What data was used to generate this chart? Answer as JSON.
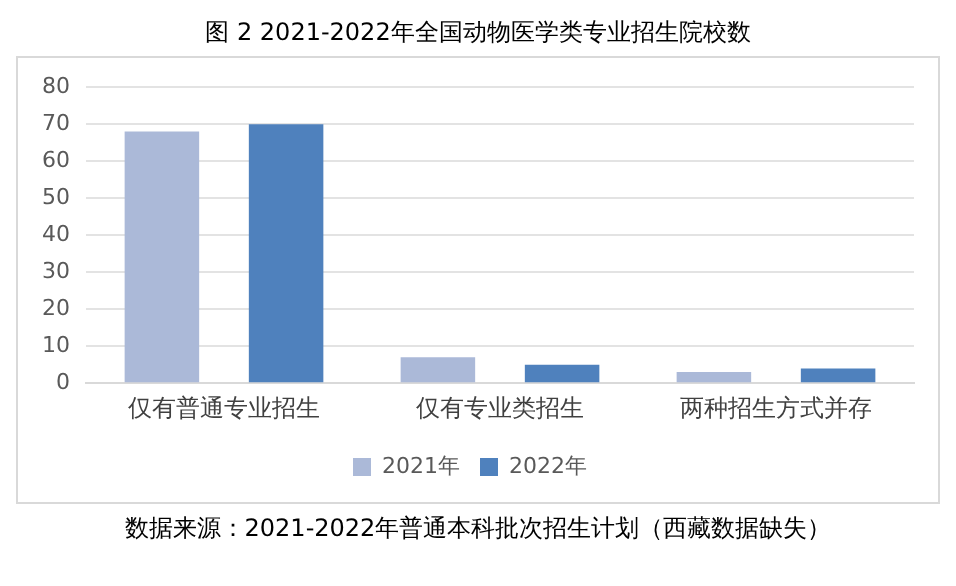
{
  "chart_data": {
    "type": "bar",
    "title": "图 2 2021-2022年全国动物医学类专业招生院校数",
    "categories": [
      "仅有普通专业招生",
      "仅有专业类招生",
      "两种招生方式并存"
    ],
    "series": [
      {
        "name": "2021年",
        "color": "#abb9d8",
        "values": [
          68,
          7,
          3
        ]
      },
      {
        "name": "2022年",
        "color": "#4f81bd",
        "values": [
          70,
          5,
          4
        ]
      }
    ],
    "ylim": [
      0,
      80
    ],
    "yticks": [
      0,
      10,
      20,
      30,
      40,
      50,
      60,
      70,
      80
    ],
    "grid": "y",
    "legend": "bottom",
    "annotations": [
      "数据来源：2021-2022年普通本科批次招生计划（西藏数据缺失）"
    ]
  }
}
